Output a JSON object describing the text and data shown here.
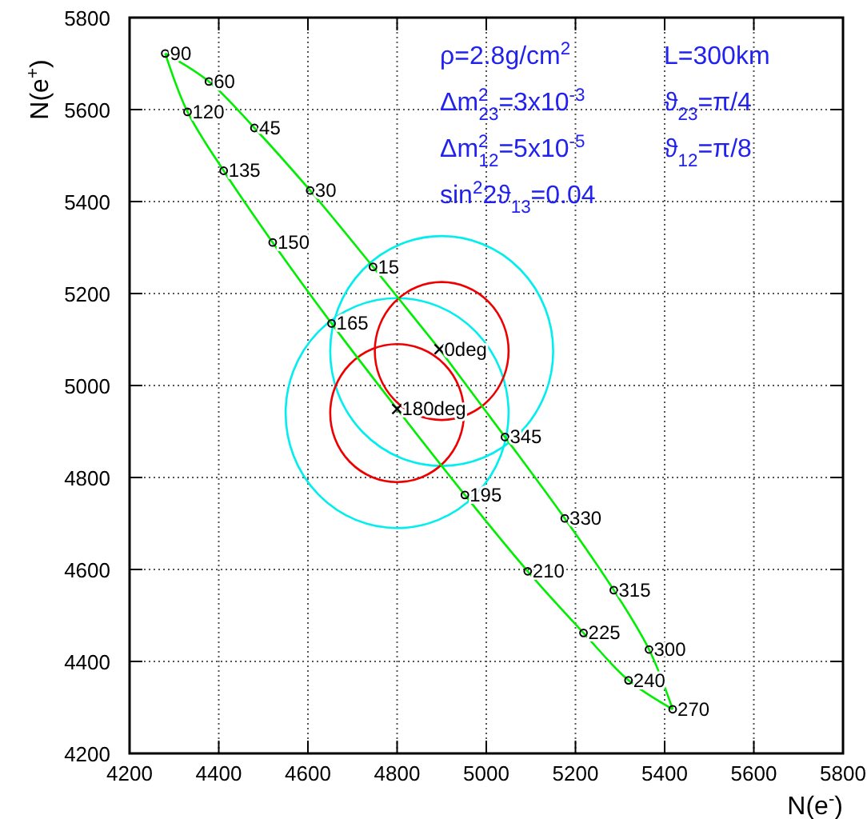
{
  "chart_data": {
    "type": "line",
    "xlabel": "N(e$^{-}$)",
    "ylabel": "N(e$^{+}$)",
    "xlim": [
      4200,
      5800
    ],
    "ylim": [
      4200,
      5800
    ],
    "xticks": [
      4200,
      4400,
      4600,
      4800,
      5000,
      5200,
      5400,
      5600,
      5800
    ],
    "yticks": [
      4200,
      4400,
      4600,
      4800,
      5000,
      5200,
      5400,
      5600,
      5800
    ],
    "grid": true,
    "series": [
      {
        "color": "#00ee00",
        "marker": "none",
        "x": [
          4280,
          4378,
          4480,
          4605,
          4746,
          4895
        ],
        "values": [
          5722,
          5661,
          5560,
          5424,
          5258,
          5079
        ]
      },
      {
        "color": "#00ee00",
        "marker": "none",
        "x": [
          4280,
          4330,
          4411,
          4521,
          4653,
          4800,
          4952,
          5093,
          5218,
          5319,
          5418
        ],
        "values": [
          5722,
          5595,
          5467,
          5311,
          5135,
          4949,
          4762,
          4596,
          4462,
          4359,
          4296
        ]
      },
      {
        "color": "#00ee00",
        "marker": "none",
        "x": [
          4895,
          5042,
          5176,
          5286,
          5365,
          5418
        ],
        "values": [
          5079,
          4888,
          4711,
          4555,
          4426,
          4296
        ]
      },
      {
        "type": "scatter",
        "color": "#000000",
        "marker": "circle",
        "x": [
          4746,
          4605,
          4480,
          4378,
          4280,
          4330,
          4411,
          4521,
          4653,
          4952,
          5093,
          5218,
          5319,
          5418,
          5365,
          5286,
          5176,
          5042
        ],
        "values": [
          5258,
          5424,
          5560,
          5661,
          5722,
          5595,
          5467,
          5311,
          5135,
          4762,
          4596,
          4462,
          4359,
          4296,
          4426,
          4555,
          4711,
          4888
        ]
      },
      {
        "type": "scatter",
        "color": "#000000",
        "marker": "cross",
        "x": [
          4895,
          4800
        ],
        "values": [
          5079,
          4949
        ]
      }
    ],
    "annotations": [
      "ρ=2.8g/cm$^{2}$",
      "L=300km",
      "Δm$^{2}$$_{23}$=3x10$^{-3}$",
      "ϑ$_{23}$=π/4",
      "Δm$^{2}$$_{12}$=5x10$^{-5}$",
      "ϑ$_{12}$=π/8",
      "sin$^{2}$2ϑ$_{13}$=0.04",
      {
        "text": "0deg",
        "x": 4895,
        "y": 5079
      },
      {
        "text": "15",
        "x": 4746,
        "y": 5258
      },
      {
        "text": "30",
        "x": 4605,
        "y": 5424
      },
      {
        "text": "45",
        "x": 4480,
        "y": 5560
      },
      {
        "text": "60",
        "x": 4378,
        "y": 5661
      },
      {
        "text": "90",
        "x": 4280,
        "y": 5722
      },
      {
        "text": "120",
        "x": 4330,
        "y": 5595
      },
      {
        "text": "135",
        "x": 4411,
        "y": 5467
      },
      {
        "text": "150",
        "x": 4521,
        "y": 5311
      },
      {
        "text": "165",
        "x": 4653,
        "y": 5135
      },
      {
        "text": "180deg",
        "x": 4800,
        "y": 4949
      },
      {
        "text": "195",
        "x": 4952,
        "y": 4762
      },
      {
        "text": "210",
        "x": 5093,
        "y": 4596
      },
      {
        "text": "225",
        "x": 5218,
        "y": 4462
      },
      {
        "text": "240",
        "x": 5319,
        "y": 4359
      },
      {
        "text": "270",
        "x": 5418,
        "y": 4296
      },
      {
        "text": "300",
        "x": 5365,
        "y": 4426
      },
      {
        "text": "315",
        "x": 5286,
        "y": 4555
      },
      {
        "text": "330",
        "x": 5176,
        "y": 4711
      },
      {
        "text": "345",
        "x": 5042,
        "y": 4888
      }
    ]
  }
}
